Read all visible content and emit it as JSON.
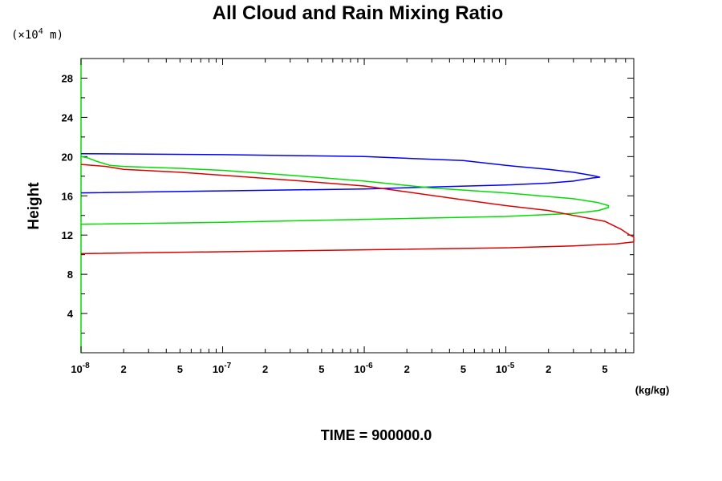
{
  "chart_data": {
    "type": "line",
    "title": "All Cloud and Rain Mixing Ratio",
    "ylabel": "Height",
    "y_unit": {
      "prefix": "(×10",
      "exp": "4",
      "suffix": " m)"
    },
    "x_unit": "(kg/kg)",
    "footer": "TIME = 900000.0",
    "x_scale": "log",
    "xlim": [
      1e-08,
      8e-05
    ],
    "ylim": [
      0,
      30
    ],
    "grid": false,
    "legend": "none",
    "y_ticks": [
      "4",
      "8",
      "12",
      "16",
      "20",
      "24",
      "28"
    ],
    "y_tick_values": [
      4,
      8,
      12,
      16,
      20,
      24,
      28
    ],
    "x_ticks": [
      {
        "value": 1e-08,
        "base": "10",
        "exp": "-8"
      },
      {
        "value": 2e-08,
        "label": "2"
      },
      {
        "value": 5e-08,
        "label": "5"
      },
      {
        "value": 1e-07,
        "base": "10",
        "exp": "-7"
      },
      {
        "value": 2e-07,
        "label": "2"
      },
      {
        "value": 5e-07,
        "label": "5"
      },
      {
        "value": 1e-06,
        "base": "10",
        "exp": "-6"
      },
      {
        "value": 2e-06,
        "label": "2"
      },
      {
        "value": 5e-06,
        "label": "5"
      },
      {
        "value": 1e-05,
        "base": "10",
        "exp": "-5"
      },
      {
        "value": 2e-05,
        "label": "2"
      },
      {
        "value": 5e-05,
        "label": "5"
      }
    ],
    "series": [
      {
        "color": "#0000ff",
        "points": [
          [
            1e-08,
            20.3
          ],
          [
            1e-07,
            20.2
          ],
          [
            1e-06,
            20.0
          ],
          [
            5e-06,
            19.6
          ],
          [
            1e-05,
            19.1
          ],
          [
            2e-05,
            18.7
          ],
          [
            3e-05,
            18.4
          ],
          [
            4e-05,
            18.1
          ],
          [
            4.6e-05,
            17.9
          ],
          [
            4e-05,
            17.8
          ],
          [
            3e-05,
            17.5
          ],
          [
            2e-05,
            17.3
          ],
          [
            1e-05,
            17.1
          ],
          [
            3e-06,
            16.9
          ],
          [
            1e-06,
            16.7
          ],
          [
            1e-07,
            16.5
          ],
          [
            1e-08,
            16.3
          ]
        ]
      },
      {
        "color": "#00dd00",
        "points": [
          [
            1e-08,
            20.0
          ],
          [
            1.1e-08,
            19.9
          ],
          [
            1.3e-08,
            19.5
          ],
          [
            1.6e-08,
            19.1
          ],
          [
            2e-08,
            19.0
          ],
          [
            5e-08,
            18.8
          ],
          [
            1e-07,
            18.6
          ],
          [
            3e-07,
            18.1
          ],
          [
            1e-06,
            17.5
          ],
          [
            3e-06,
            16.8
          ],
          [
            1e-05,
            16.3
          ],
          [
            3e-05,
            15.7
          ],
          [
            4.5e-05,
            15.3
          ],
          [
            5.3e-05,
            15.0
          ],
          [
            5.3e-05,
            14.8
          ],
          [
            4.5e-05,
            14.5
          ],
          [
            3e-05,
            14.2
          ],
          [
            1e-05,
            13.9
          ],
          [
            1e-06,
            13.6
          ],
          [
            1e-07,
            13.3
          ],
          [
            1e-08,
            13.1
          ]
        ]
      },
      {
        "color": "#dd0000",
        "points": [
          [
            1e-08,
            19.2
          ],
          [
            1.5e-08,
            19.0
          ],
          [
            2e-08,
            18.7
          ],
          [
            5e-08,
            18.4
          ],
          [
            1e-07,
            18.1
          ],
          [
            3e-07,
            17.6
          ],
          [
            1e-06,
            17.0
          ],
          [
            2e-06,
            16.4
          ],
          [
            5e-06,
            15.6
          ],
          [
            1e-05,
            15.0
          ],
          [
            2e-05,
            14.5
          ],
          [
            3e-05,
            14.0
          ],
          [
            5e-05,
            13.4
          ],
          [
            6.5e-05,
            12.6
          ],
          [
            7.5e-05,
            12.0
          ],
          [
            8e-05,
            11.8
          ],
          [
            8e-05,
            11.3
          ],
          [
            6e-05,
            11.1
          ],
          [
            3e-05,
            10.9
          ],
          [
            1e-05,
            10.7
          ],
          [
            1e-06,
            10.5
          ],
          [
            1e-07,
            10.3
          ],
          [
            1e-08,
            10.1
          ]
        ]
      }
    ]
  }
}
